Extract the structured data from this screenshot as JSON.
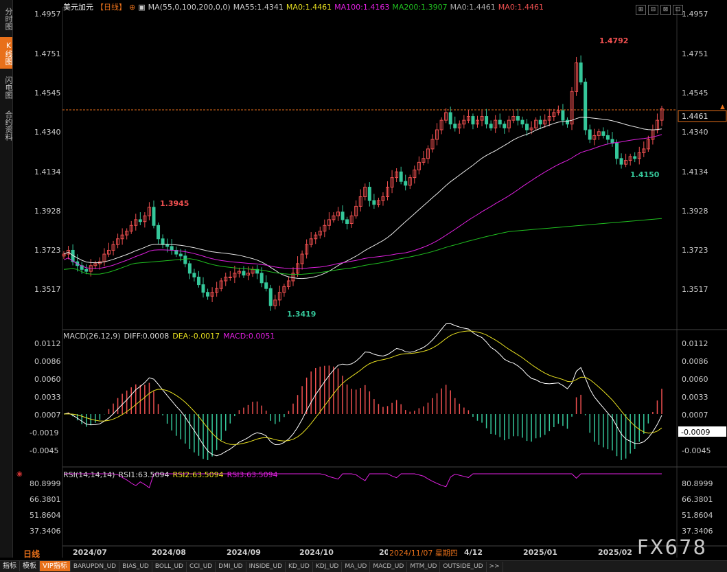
{
  "sidebar": {
    "tabs": [
      "分时图",
      "K线图",
      "闪电图",
      "合约资料"
    ]
  },
  "header": {
    "symbol": "美元加元",
    "period": "【日线】",
    "ma_name": "MA(55,0,100,200,0,0)",
    "ma55": "MA55:1.4341",
    "ma0a": "MA0:1.4461",
    "ma100": "MA100:1.4163",
    "ma200": "MA200:1.3907",
    "ma0b": "MA0:1.4461",
    "ma0c": "MA0:1.4461"
  },
  "win_ctrls": [
    "⊞",
    "⊟",
    "⊠",
    "⊡"
  ],
  "price_axis": [
    "1.4957",
    "1.4751",
    "1.4545",
    "1.4340",
    "1.4134",
    "1.3928",
    "1.3723",
    "1.3517"
  ],
  "price_current": "1.4461",
  "annotations": {
    "high": "1.4792",
    "mid_high": "1.3945",
    "low": "1.3419",
    "mid_low": "1.4150"
  },
  "macd": {
    "name": "MACD(26,12,9)",
    "diff": "DIFF:0.0008",
    "dea": "DEA:-0.0017",
    "macd": "MACD:0.0051",
    "axis": [
      "0.0112",
      "0.0086",
      "0.0060",
      "0.0033",
      "0.0007",
      "-0.0019",
      "-0.0045"
    ],
    "current": "-0.0009"
  },
  "rsi": {
    "name": "RSI(14,14,14)",
    "rsi1": "RSI1:63.5094",
    "rsi2": "RSI2:63.5094",
    "rsi3": "RSI3:63.5094",
    "axis": [
      "80.8999",
      "66.3801",
      "51.8604",
      "37.3406"
    ]
  },
  "x_axis": [
    "2024/07",
    "2024/08",
    "2024/09",
    "2024/10",
    "20",
    "4/12",
    "2025/01",
    "2025/02"
  ],
  "date_tip": "2024/11/07 星期四",
  "period_label": "日线",
  "watermark": "FX678",
  "bottom_tabs": [
    "指标",
    "模板",
    "VIP指标",
    "BARUPDN_UD",
    "BIAS_UD",
    "BOLL_UD",
    "CCI_UD",
    "DMI_UD",
    "INSIDE_UD",
    "KD_UD",
    "KDJ_UD",
    "MA_UD",
    "MACD_UD",
    "MTM_UD",
    "OUTSIDE_UD",
    ">>"
  ],
  "colors": {
    "up": "#f05050",
    "down": "#35c79a",
    "ma55": "#e8e8e8",
    "ma100": "#e020e0",
    "ma200": "#20c020",
    "accent": "#e8701a",
    "macd_diff": "#ffffff",
    "macd_dea": "#e8e020"
  },
  "chart_data": {
    "type": "candlestick",
    "price_range": [
      1.34,
      1.5
    ],
    "key_points": [
      {
        "label": "2024/07",
        "close": 1.37
      },
      {
        "label": "2024/08 high",
        "close": 1.3945
      },
      {
        "label": "2024/09 low",
        "close": 1.3419
      },
      {
        "label": "2024/12",
        "close": 1.43
      },
      {
        "label": "2025/02 high",
        "close": 1.4792
      },
      {
        "label": "2025/02 low",
        "close": 1.415
      },
      {
        "label": "last",
        "close": 1.4461
      }
    ]
  }
}
